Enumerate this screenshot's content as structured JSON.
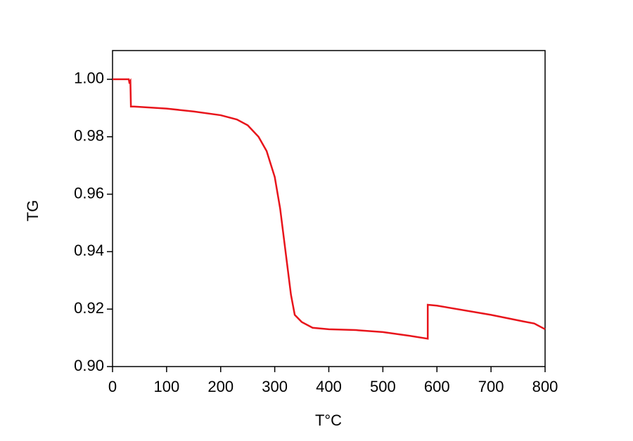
{
  "chart_data": {
    "type": "line",
    "xlabel": "T°C",
    "ylabel": "TG",
    "series": [
      {
        "name": "TG",
        "color": "#e8141b",
        "x": [
          0,
          30,
          31,
          33,
          34,
          35,
          40,
          100,
          150,
          200,
          230,
          250,
          270,
          285,
          300,
          310,
          320,
          330,
          337,
          350,
          370,
          400,
          450,
          500,
          550,
          583,
          583,
          600,
          700,
          760,
          780,
          800
        ],
        "values": [
          1.0,
          1.0,
          0.999,
          0.9995,
          0.9905,
          0.9905,
          0.9905,
          0.9898,
          0.9888,
          0.9875,
          0.986,
          0.984,
          0.98,
          0.975,
          0.966,
          0.955,
          0.94,
          0.925,
          0.918,
          0.9155,
          0.9135,
          0.913,
          0.9127,
          0.912,
          0.9107,
          0.9097,
          0.9215,
          0.9212,
          0.918,
          0.9157,
          0.915,
          0.913
        ]
      }
    ],
    "xlim": [
      0,
      800
    ],
    "xticks": [
      0,
      100,
      200,
      300,
      400,
      500,
      600,
      700,
      800
    ],
    "ylim": [
      0.9,
      1.01
    ],
    "yticks": [
      {
        "value": 0.9,
        "label": "0.90"
      },
      {
        "value": 0.92,
        "label": "0.92"
      },
      {
        "value": 0.94,
        "label": "0.94"
      },
      {
        "value": 0.96,
        "label": "0.96"
      },
      {
        "value": 0.98,
        "label": "0.98"
      },
      {
        "value": 1.0,
        "label": "1.00"
      }
    ],
    "grid": false
  }
}
